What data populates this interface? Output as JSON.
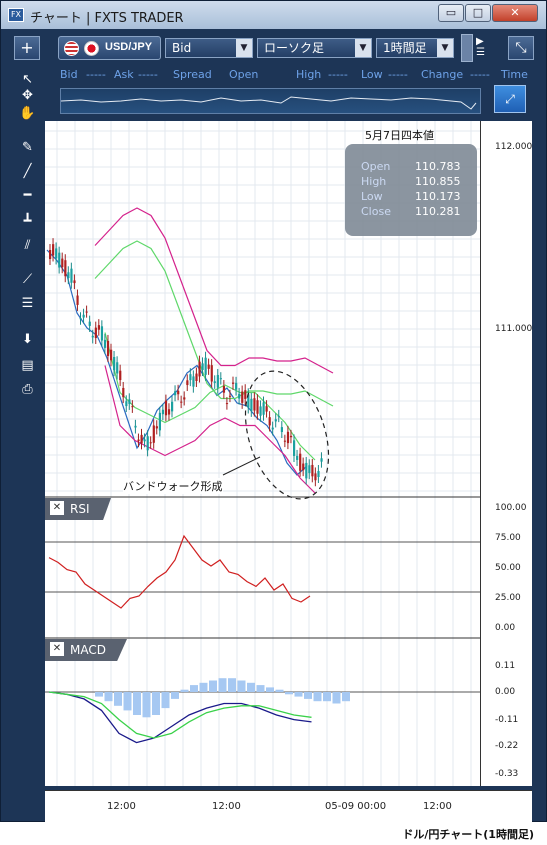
{
  "window": {
    "title": "チャート | FXTS TRADER",
    "app_icon": "FX",
    "min_label": "▭",
    "max_label": "□",
    "close_label": "✕"
  },
  "toolbar": {
    "add_label": "+",
    "symbol": "USD/JPY",
    "price_type": "Bid",
    "chart_type": "ローソク足",
    "timeframe": "1時間足",
    "expand_label": "⤡"
  },
  "quote_bar": [
    "Bid",
    "-----",
    "Ask",
    "-----",
    "Spread",
    "Open",
    "High",
    "-----",
    "Low",
    "-----",
    "Change",
    "-----",
    "Time"
  ],
  "ohlc": {
    "date_label": "5月7日四本値",
    "rows": [
      {
        "k": "Open",
        "v": "110.783"
      },
      {
        "k": "High",
        "v": "110.855"
      },
      {
        "k": "Low",
        "v": "110.173"
      },
      {
        "k": "Close",
        "v": "110.281"
      }
    ]
  },
  "price_ticks": [
    "112.000",
    "111.000"
  ],
  "rsi": {
    "title": "RSI",
    "ticks": [
      "100.00",
      "75.00",
      "50.00",
      "25.00",
      "0.00"
    ]
  },
  "macd": {
    "title": "MACD",
    "ticks": [
      "0.11",
      "0.00",
      "-0.11",
      "-0.22",
      "-0.33"
    ]
  },
  "time_axis": [
    "12:00",
    "12:00",
    "05-09 00:00",
    "12:00"
  ],
  "annotation": "バンドウォーク形成",
  "caption": "ドル/円チャート(1時間足)",
  "chart_data": {
    "type": "line",
    "title": "",
    "price_ylim": [
      110.0,
      112.4
    ],
    "series": [
      {
        "values": [
          111.72,
          111.65,
          111.55,
          111.3,
          111.2,
          111.15,
          111.0,
          110.8,
          110.6,
          110.4,
          110.5,
          110.65,
          110.72,
          110.78,
          110.9,
          110.95,
          110.85,
          110.75,
          110.8,
          110.7,
          110.68,
          110.6,
          110.55,
          110.45,
          110.3,
          110.22,
          110.28
        ]
      },
      {
        "values": [
          111.75,
          111.85,
          111.95,
          112.0,
          111.95,
          111.8,
          111.55,
          111.3,
          111.05,
          110.95,
          110.95,
          111.0,
          111.0,
          110.98,
          110.98,
          111.0,
          110.95,
          110.9
        ]
      },
      {
        "values": [
          110.95,
          110.55,
          110.45,
          110.4,
          110.35,
          110.4,
          110.45,
          110.55,
          110.6,
          110.55,
          110.55,
          110.45,
          110.35,
          110.2,
          110.1
        ]
      }
    ]
  }
}
